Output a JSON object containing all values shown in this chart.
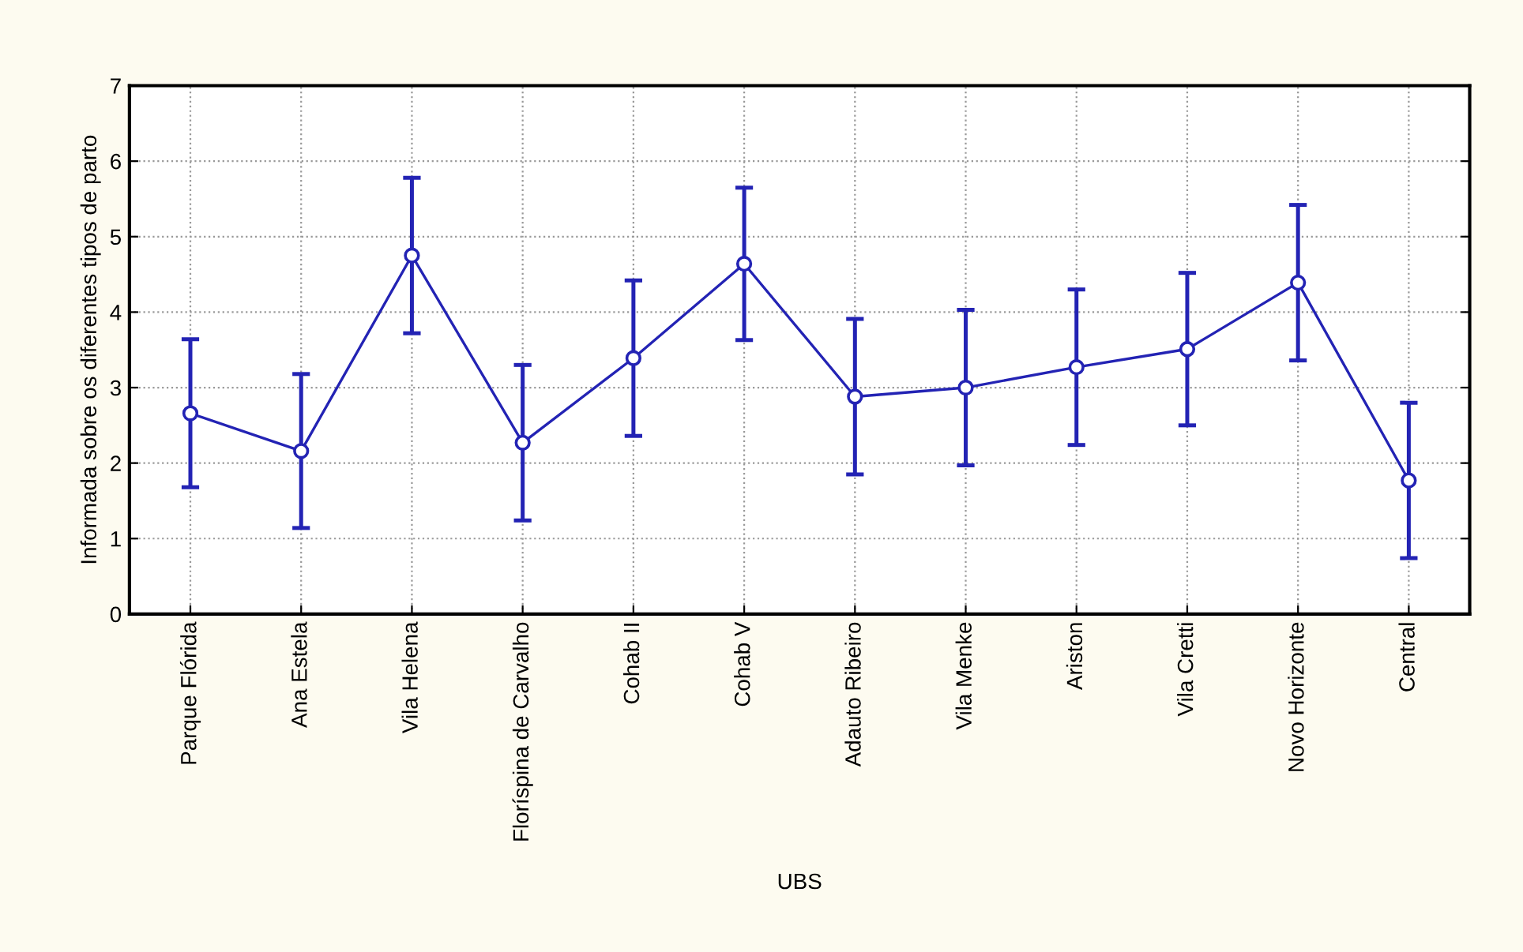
{
  "chart_data": {
    "type": "line",
    "xlabel": "UBS",
    "ylabel": "Informada sobre os diferentes tipos de parto",
    "categories": [
      "Parque Flórida",
      "Ana Estela",
      "Vila Helena",
      "Floríspina de Carvalho",
      "Cohab II",
      "Cohab V",
      "Adauto Ribeiro",
      "Vila Menke",
      "Ariston",
      "Vila Cretti",
      "Novo Horizonte",
      "Central"
    ],
    "series": [
      {
        "color": "#2323b4",
        "values": [
          2.66,
          2.16,
          4.75,
          2.27,
          3.39,
          4.64,
          2.88,
          3.0,
          3.27,
          3.51,
          4.39,
          1.77
        ],
        "errors": [
          0.98,
          1.02,
          1.03,
          1.03,
          1.03,
          1.01,
          1.03,
          1.03,
          1.03,
          1.01,
          1.03,
          1.03
        ]
      }
    ],
    "ylim": [
      0,
      7
    ],
    "yticks": [
      0,
      1,
      2,
      3,
      4,
      5,
      6,
      7
    ],
    "grid": true,
    "marker": "circle",
    "line_style": "solid",
    "legend": false
  }
}
